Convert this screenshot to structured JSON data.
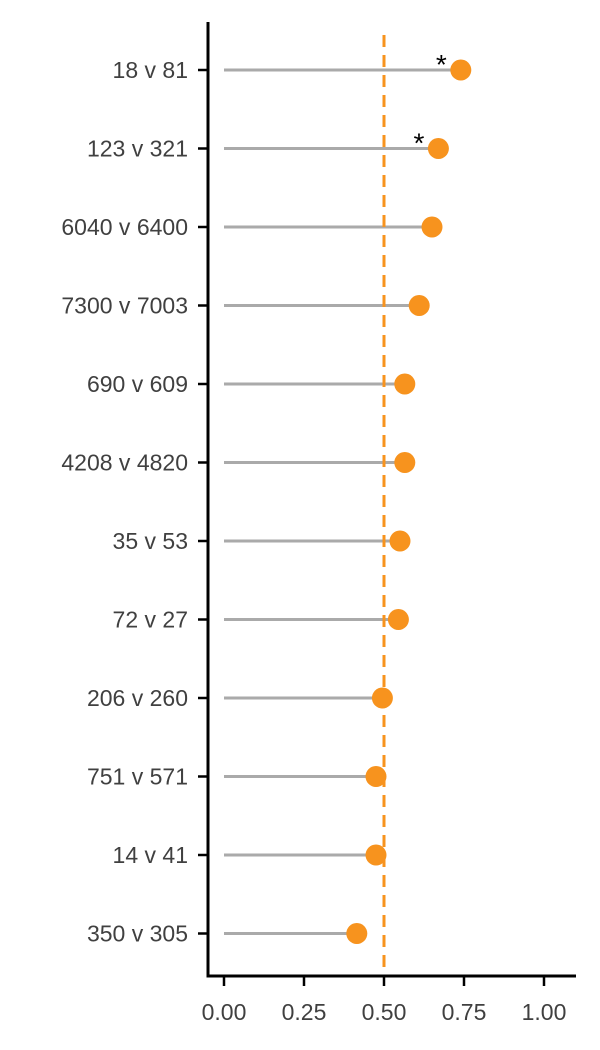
{
  "chart_data": {
    "type": "lollipop",
    "orientation": "horizontal",
    "categories": [
      "18 v 81",
      "123 v 321",
      "6040 v 6400",
      "7300 v 7003",
      "690 v 609",
      "4208 v 4820",
      "35 v 53",
      "72 v 27",
      "206 v 260",
      "751 v 571",
      "14 v 41",
      "350 v 305"
    ],
    "values": [
      0.74,
      0.67,
      0.65,
      0.61,
      0.565,
      0.565,
      0.55,
      0.545,
      0.495,
      0.475,
      0.475,
      0.415
    ],
    "annotations": [
      "*",
      "*",
      "",
      "",
      "",
      "",
      "",
      "",
      "",
      "",
      "",
      ""
    ],
    "reference_line": 0.5,
    "xlim": [
      -0.05,
      1.1
    ],
    "xticks": [
      0,
      0.25,
      0.5,
      0.75,
      1.0
    ],
    "xtick_labels": [
      "0.00",
      "0.25",
      "0.50",
      "0.75",
      "1.00"
    ],
    "title": "",
    "xlabel": "",
    "ylabel": "",
    "grid": false,
    "legend": "none",
    "colors": {
      "point": "#F7931E",
      "stem": "#AAAAAA",
      "reference": "#F7931E",
      "axis": "#000000",
      "text": "#404040"
    }
  }
}
